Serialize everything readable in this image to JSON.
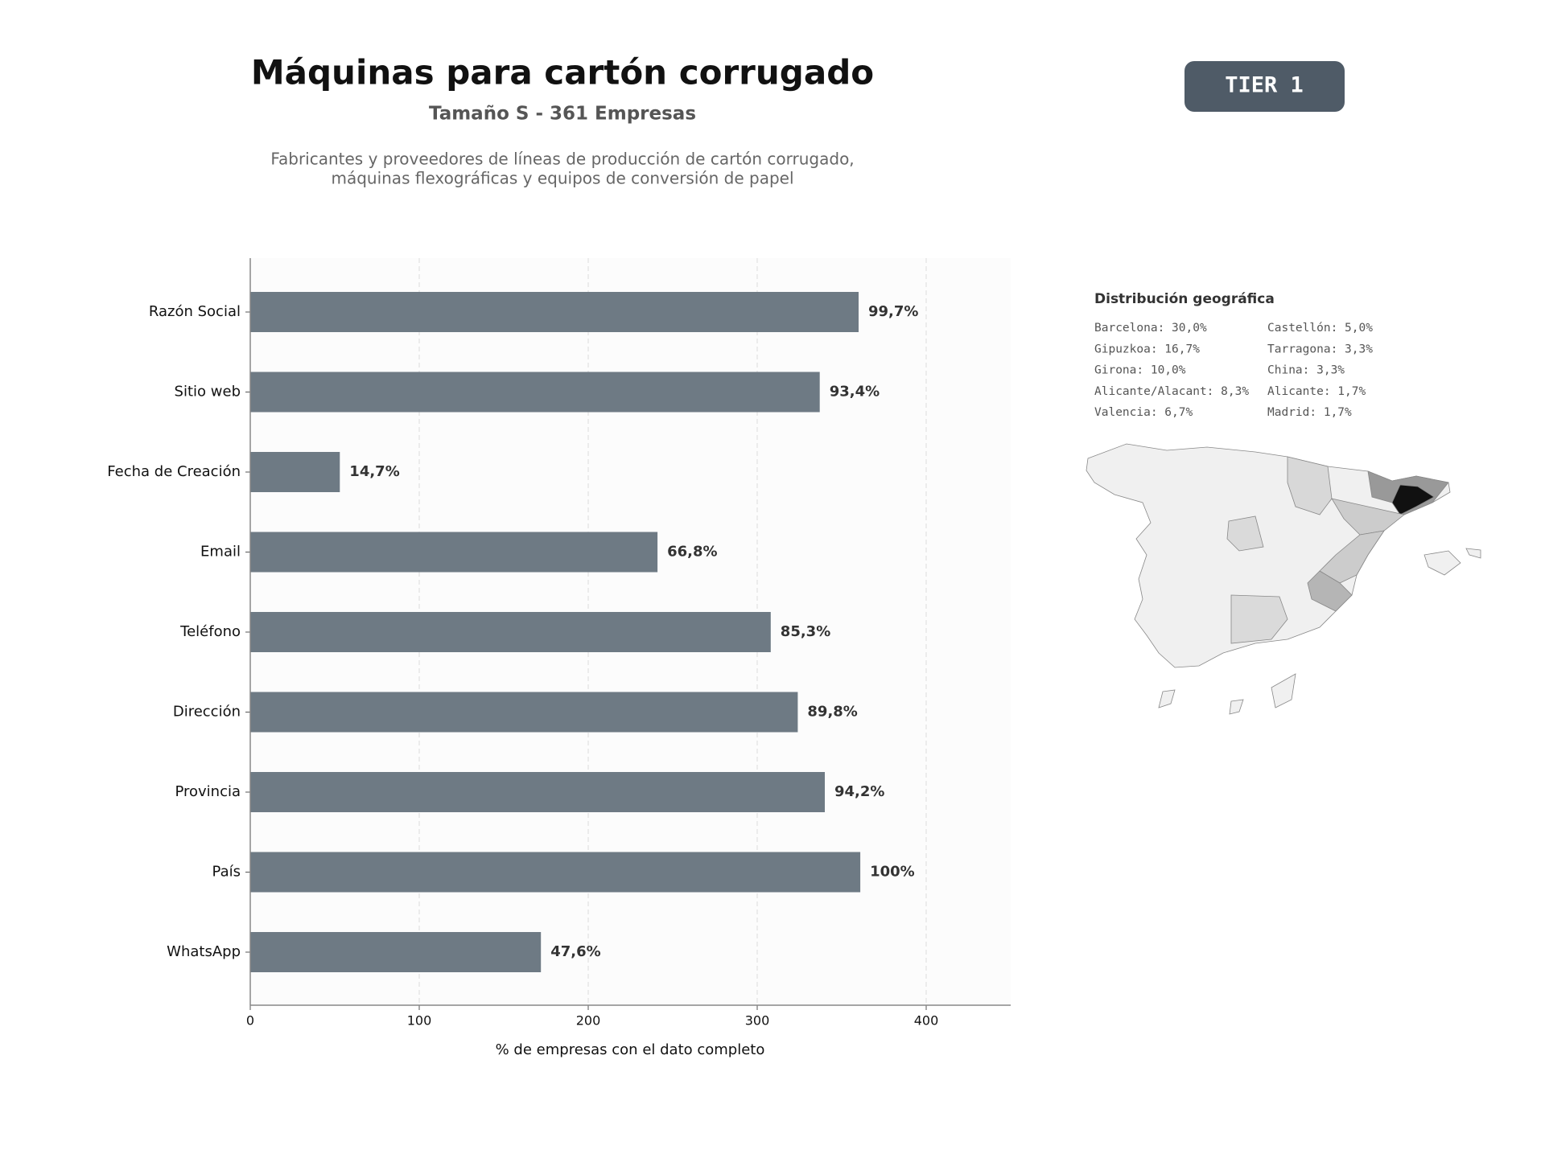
{
  "chart_data": {
    "type": "bar",
    "orientation": "horizontal",
    "title": "Máquinas para cartón corrugado",
    "subtitle": "Tamaño S - 361 Empresas",
    "description": [
      "Fabricantes y proveedores de líneas de producción de cartón corrugado,",
      "máquinas flexográficas y equipos de conversión de papel"
    ],
    "xlabel": "% de empresas con el dato completo",
    "categories": [
      "Razón Social",
      "Sitio web",
      "Fecha de Creación",
      "Email",
      "Teléfono",
      "Dirección",
      "Provincia",
      "País",
      "WhatsApp"
    ],
    "values": [
      360,
      337,
      53,
      241,
      308,
      324,
      340,
      361,
      172
    ],
    "value_labels": [
      "99,7%",
      "93,4%",
      "14,7%",
      "66,8%",
      "85,3%",
      "89,8%",
      "94,2%",
      "100%",
      "47,6%"
    ],
    "color": "#6e7a84",
    "xlim": [
      0,
      450
    ],
    "xticks": [
      0,
      100,
      200,
      300,
      400
    ],
    "grid": true
  },
  "badge": "TIER 1",
  "geo_distribution": {
    "title": "Distribución geográfica",
    "entries": [
      [
        "Barcelona: 30,0%",
        "Castellón: 5,0%"
      ],
      [
        "Gipuzkoa: 16,7%",
        "Tarragona: 3,3%"
      ],
      [
        "Girona: 10,0%",
        "China: 3,3%"
      ],
      [
        "Alicante/Alacant: 8,3%",
        "Alicante: 1,7%"
      ],
      [
        "Valencia: 6,7%",
        "Madrid: 1,7%"
      ]
    ]
  }
}
